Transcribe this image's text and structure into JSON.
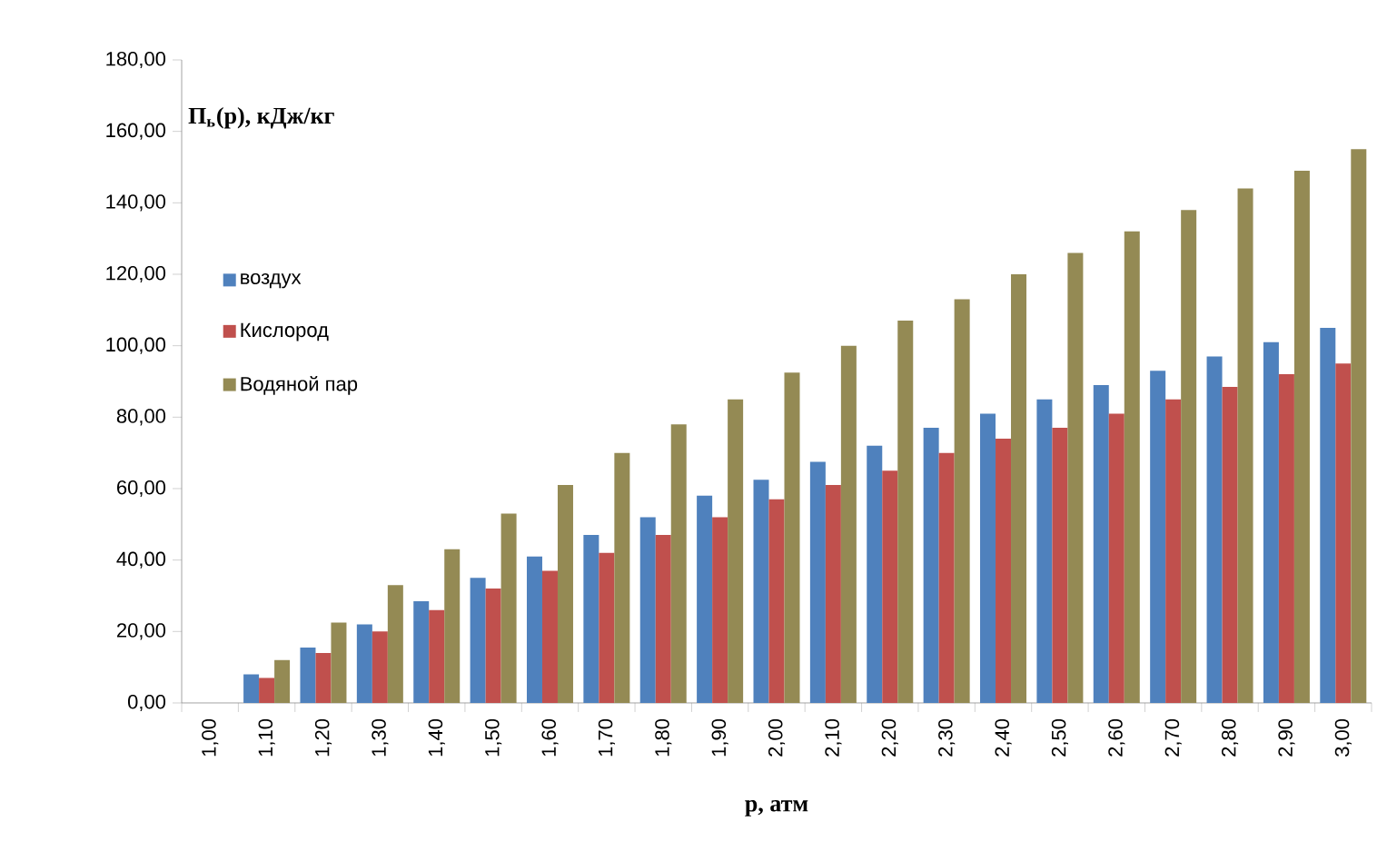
{
  "chart_data": {
    "type": "bar",
    "ylabel": "П$_{ь}$(р), кДж/кг",
    "xlabel": "p, атм",
    "categories": [
      "1,00",
      "1,10",
      "1,20",
      "1,30",
      "1,40",
      "1,50",
      "1,60",
      "1,70",
      "1,80",
      "1,90",
      "2,00",
      "2,10",
      "2,20",
      "2,30",
      "2,40",
      "2,50",
      "2,60",
      "2,70",
      "2,80",
      "2,90",
      "3,00"
    ],
    "series": [
      {
        "name": "воздух",
        "color": "#4f81bd",
        "values": [
          0,
          8,
          15.5,
          22,
          28.5,
          35,
          41,
          47,
          52,
          58,
          62.5,
          67.5,
          72,
          77,
          81,
          85,
          89,
          93,
          97,
          101,
          105
        ]
      },
      {
        "name": "Кислород",
        "color": "#c0504d",
        "values": [
          0,
          7,
          14,
          20,
          26,
          32,
          37,
          42,
          47,
          52,
          57,
          61,
          65,
          70,
          74,
          77,
          81,
          85,
          88.5,
          92,
          95
        ]
      },
      {
        "name": "Водяной пар",
        "color": "#948a54",
        "values": [
          0,
          12,
          22.5,
          33,
          43,
          53,
          61,
          70,
          78,
          85,
          92.5,
          100,
          107,
          113,
          120,
          126,
          132,
          138,
          144,
          149,
          155
        ]
      }
    ],
    "ylim": [
      0,
      180
    ],
    "yticks": [
      {
        "value": 0,
        "label": "0,00"
      },
      {
        "value": 20,
        "label": "20,00"
      },
      {
        "value": 40,
        "label": "40,00"
      },
      {
        "value": 60,
        "label": "60,00"
      },
      {
        "value": 80,
        "label": "80,00"
      },
      {
        "value": 100,
        "label": "100,00"
      },
      {
        "value": 120,
        "label": "120,00"
      },
      {
        "value": 140,
        "label": "140,00"
      },
      {
        "value": 160,
        "label": "160,00"
      },
      {
        "value": 180,
        "label": "180,00"
      }
    ],
    "grid": false,
    "legend": "left"
  }
}
